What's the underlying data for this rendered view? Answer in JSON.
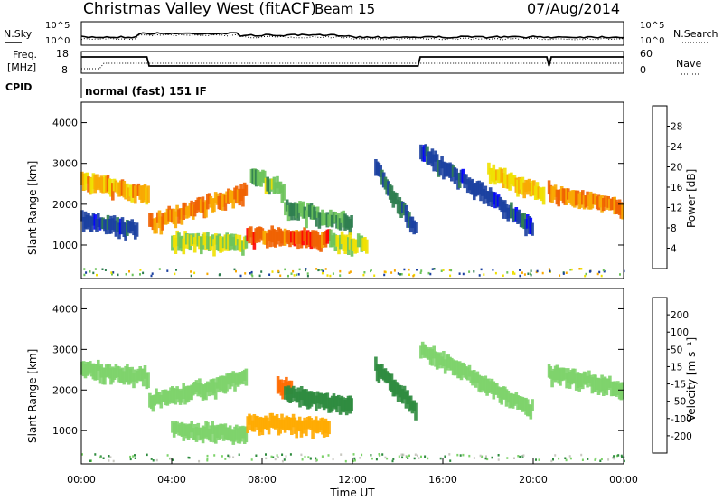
{
  "header": {
    "station": "Christmas Valley West (fitACF)",
    "beam": "Beam 15",
    "date": "07/Aug/2014"
  },
  "nsky": {
    "left_label": "N.Sky",
    "left_ticks": [
      "10^5",
      "10^0"
    ],
    "right_ticks": [
      "10^5",
      "10^0"
    ],
    "right_label": "N.Search"
  },
  "freq": {
    "label_1": "Freq.",
    "label_2": "[MHz]",
    "left_ticks": [
      "18",
      "8"
    ],
    "right_ticks": [
      "60",
      "0"
    ],
    "right_label": "Nave"
  },
  "cpid": {
    "label": "CPID",
    "mode": "normal (fast) 151 IF"
  },
  "colors": {
    "power_scale": [
      "#0000ff",
      "#1a3fa0",
      "#2e7d4f",
      "#6cc35a",
      "#f0e000",
      "#f8a800",
      "#f06000",
      "#ff0000"
    ],
    "velocity_scale": [
      "#ff0000",
      "#ff6a00",
      "#ffaa00",
      "#c8c8c0",
      "#7dd36a",
      "#2e8b3e",
      "#1a3fa0",
      "#0000ff"
    ],
    "ground_scatter": "#c8c8c0"
  },
  "chart_data": [
    {
      "type": "heatmap",
      "ylabel": "Slant Range [km]",
      "yticks": [
        "4000",
        "3000",
        "2000",
        "1000"
      ],
      "ylim": [
        180,
        4500
      ],
      "xlim": [
        "00:00",
        "24:00"
      ],
      "colorbar": {
        "label": "Power [dB]",
        "ticks": [
          "28",
          "24",
          "20",
          "16",
          "12",
          "8",
          "4"
        ],
        "range": [
          0,
          32
        ]
      },
      "echo_bands": [
        {
          "start": "00:00",
          "end": "03:00",
          "range_start_km": 2600,
          "range_end_km": 2200,
          "power_db": 22
        },
        {
          "start": "00:00",
          "end": "02:30",
          "range_start_km": 1600,
          "range_end_km": 1350,
          "power_db": 6
        },
        {
          "start": "03:00",
          "end": "07:20",
          "range_start_km": 1500,
          "range_end_km": 2300,
          "power_db": 24
        },
        {
          "start": "04:00",
          "end": "07:20",
          "range_start_km": 1100,
          "range_end_km": 1000,
          "power_db": 16
        },
        {
          "start": "07:20",
          "end": "11:00",
          "range_start_km": 1200,
          "range_end_km": 1150,
          "power_db": 26
        },
        {
          "start": "07:30",
          "end": "09:00",
          "range_start_km": 2700,
          "range_end_km": 2300,
          "power_db": 14
        },
        {
          "start": "09:00",
          "end": "12:00",
          "range_start_km": 1900,
          "range_end_km": 1500,
          "power_db": 12
        },
        {
          "start": "11:00",
          "end": "12:40",
          "range_start_km": 1100,
          "range_end_km": 1000,
          "power_db": 16
        },
        {
          "start": "13:00",
          "end": "14:50",
          "range_start_km": 2900,
          "range_end_km": 1300,
          "power_db": 8
        },
        {
          "start": "15:00",
          "end": "20:00",
          "range_start_km": 3300,
          "range_end_km": 1400,
          "power_db": 6
        },
        {
          "start": "18:00",
          "end": "20:30",
          "range_start_km": 2800,
          "range_end_km": 2200,
          "power_db": 20
        },
        {
          "start": "20:40",
          "end": "24:00",
          "range_start_km": 2300,
          "range_end_km": 1900,
          "power_db": 24
        }
      ]
    },
    {
      "type": "heatmap",
      "ylabel": "Slant Range [km]",
      "xlabel": "Time UT",
      "yticks": [
        "4000",
        "3000",
        "2000",
        "1000"
      ],
      "ylim": [
        180,
        4500
      ],
      "xticks": [
        "00:00",
        "04:00",
        "08:00",
        "12:00",
        "16:00",
        "20:00",
        "00:00"
      ],
      "colorbar": {
        "label": "Velocity [m s⁻¹]",
        "ticks": [
          "200",
          "100",
          "50",
          "15",
          "-15",
          "-50",
          "-100",
          "-200"
        ],
        "range": [
          -250,
          250
        ]
      },
      "echo_bands": [
        {
          "start": "00:00",
          "end": "03:00",
          "range_start_km": 2500,
          "range_end_km": 2300,
          "velocity": 0
        },
        {
          "start": "03:00",
          "end": "07:20",
          "range_start_km": 1700,
          "range_end_km": 2300,
          "velocity": 0
        },
        {
          "start": "04:00",
          "end": "07:20",
          "range_start_km": 1000,
          "range_end_km": 900,
          "velocity": 0
        },
        {
          "start": "07:20",
          "end": "11:00",
          "range_start_km": 1150,
          "range_end_km": 1100,
          "velocity": -60
        },
        {
          "start": "08:40",
          "end": "09:20",
          "range_start_km": 2100,
          "range_end_km": 2000,
          "velocity": -120
        },
        {
          "start": "09:00",
          "end": "12:00",
          "range_start_km": 1900,
          "range_end_km": 1600,
          "velocity": 30
        },
        {
          "start": "13:00",
          "end": "14:50",
          "range_start_km": 2600,
          "range_end_km": 1500,
          "velocity": 30
        },
        {
          "start": "15:00",
          "end": "20:00",
          "range_start_km": 3000,
          "range_end_km": 1500,
          "velocity": 0
        },
        {
          "start": "20:40",
          "end": "24:00",
          "range_start_km": 2400,
          "range_end_km": 2000,
          "velocity": 0
        }
      ]
    }
  ]
}
